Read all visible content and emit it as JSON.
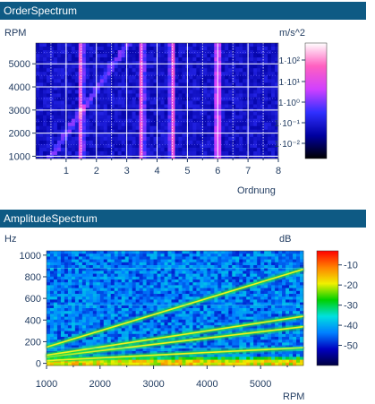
{
  "chart_data": [
    {
      "type": "heatmap",
      "title": "OrderSpectrum",
      "xlabel": "Ordnung",
      "ylabel": "RPM",
      "unit": "m/s^2",
      "x_ticks": [
        1,
        2,
        3,
        4,
        5,
        6,
        7,
        8
      ],
      "y_ticks": [
        1000,
        2000,
        3000,
        4000,
        5000
      ],
      "xlim": [
        0,
        8
      ],
      "ylim": [
        900,
        5900
      ],
      "grid": true,
      "colorbar": {
        "scale": "log",
        "ticks": [
          "1·10²",
          "1·10¹",
          "1·10⁰",
          "1·10⁻¹",
          "1·10⁻²"
        ],
        "colors": [
          "#000000",
          "#0000a0",
          "#3030ff",
          "#d040ff",
          "#ff60c0",
          "#ffffff"
        ]
      },
      "peak_orders": [
        1.5,
        3.5,
        4.5,
        6.0
      ]
    },
    {
      "type": "heatmap",
      "title": "AmplitudeSpectrum",
      "xlabel": "RPM",
      "ylabel": "Hz",
      "unit": "dB",
      "x_ticks": [
        1000,
        2000,
        3000,
        4000,
        5000
      ],
      "y_ticks": [
        0,
        200,
        400,
        600,
        800,
        1000
      ],
      "xlim": [
        1000,
        5800
      ],
      "ylim": [
        -20,
        1040
      ],
      "grid": false,
      "colorbar": {
        "scale": "linear",
        "ticks": [
          -10,
          -20,
          -30,
          -40,
          -50
        ],
        "range": [
          -60,
          -3
        ],
        "colors": [
          "#000040",
          "#0000c0",
          "#0080ff",
          "#00e0e0",
          "#00d000",
          "#f0f000",
          "#ff8000",
          "#ff0000"
        ]
      },
      "order_lines": [
        1.5,
        3.5,
        4.5,
        9.0
      ]
    }
  ]
}
